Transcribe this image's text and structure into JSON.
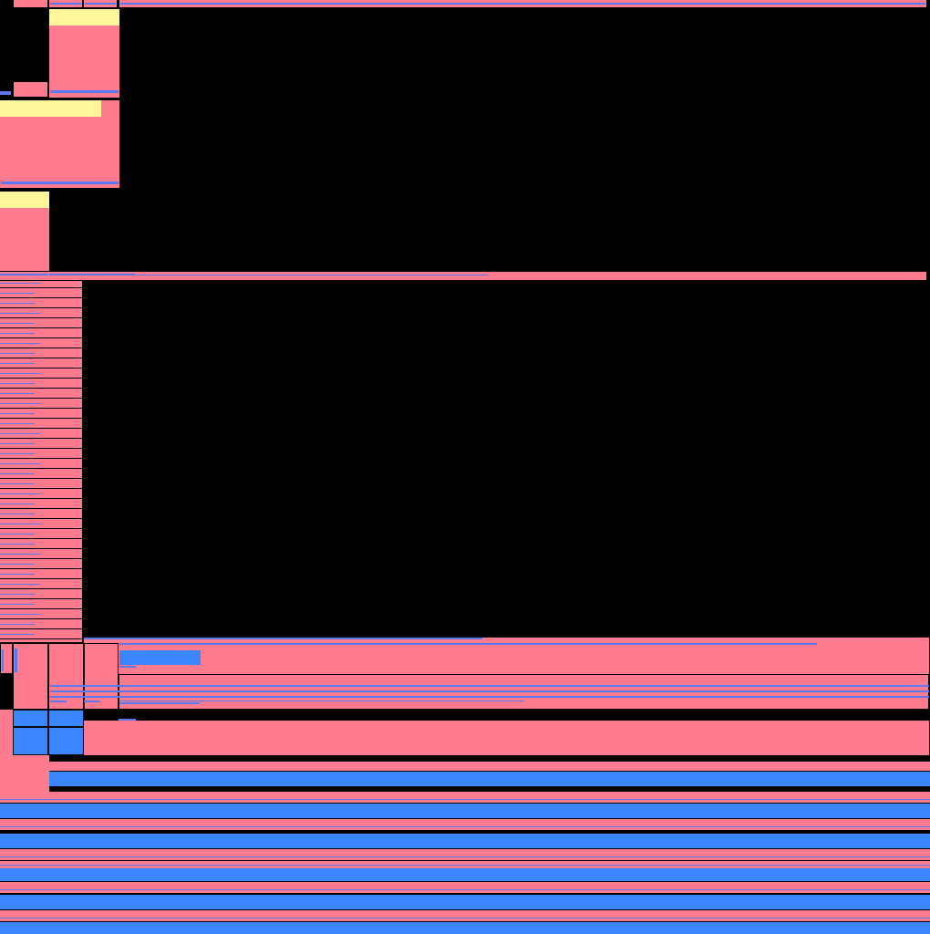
{
  "colors": {
    "background": "#000000",
    "pink": "#ff7b8d",
    "yellow": "#fff59a",
    "blue": "#3a86ff",
    "line_blue": "#5b78f0"
  },
  "screen": {
    "title": ""
  }
}
